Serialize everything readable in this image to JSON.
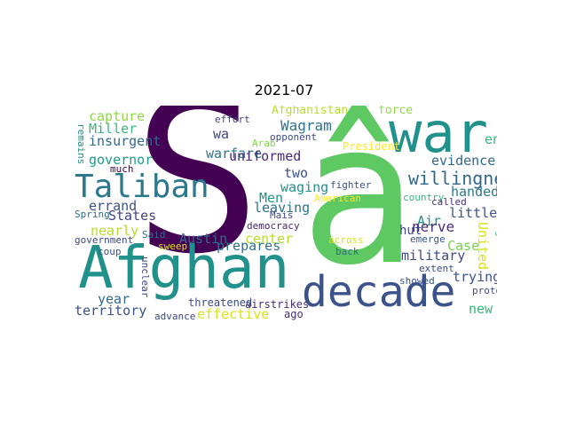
{
  "title": "2021-07",
  "words": [
    {
      "text": "S",
      "color": "#440154",
      "vertical": false
    },
    {
      "text": "â",
      "color": "#5ec962",
      "vertical": false
    },
    {
      "text": "war",
      "color": "#21918c",
      "vertical": false
    },
    {
      "text": "Afghan",
      "color": "#21918c",
      "vertical": false
    },
    {
      "text": "decade",
      "color": "#3b528b",
      "vertical": false
    },
    {
      "text": "Taliban",
      "color": "#2a788e",
      "vertical": false
    },
    {
      "text": "willingness",
      "color": "#31688e",
      "vertical": false
    },
    {
      "text": "capture",
      "color": "#90d743",
      "vertical": false
    },
    {
      "text": "Miller",
      "color": "#35b779",
      "vertical": false
    },
    {
      "text": "insurgent",
      "color": "#31688e",
      "vertical": false
    },
    {
      "text": "governor",
      "color": "#1f9e89",
      "vertical": false
    },
    {
      "text": "errand",
      "color": "#3b528b",
      "vertical": false
    },
    {
      "text": "States",
      "color": "#414487",
      "vertical": false
    },
    {
      "text": "nearly",
      "color": "#b5de2b",
      "vertical": false
    },
    {
      "text": "year",
      "color": "#31688e",
      "vertical": false
    },
    {
      "text": "territory",
      "color": "#3b528b",
      "vertical": false
    },
    {
      "text": "wa",
      "color": "#414487",
      "vertical": false
    },
    {
      "text": "warfare",
      "color": "#2c728e",
      "vertical": false
    },
    {
      "text": "uniformed",
      "color": "#482878",
      "vertical": false
    },
    {
      "text": "Wagram",
      "color": "#2c728e",
      "vertical": false
    },
    {
      "text": "Afghanistan",
      "color": "#b5de2b",
      "vertical": false
    },
    {
      "text": "force",
      "color": "#90d743",
      "vertical": false
    },
    {
      "text": "effort",
      "color": "#414487",
      "vertical": false
    },
    {
      "text": "opponent",
      "color": "#3e4989",
      "vertical": false
    },
    {
      "text": "President",
      "color": "#fde725",
      "vertical": false
    },
    {
      "text": "end",
      "color": "#35b779",
      "vertical": false
    },
    {
      "text": "evidence",
      "color": "#31688e",
      "vertical": false
    },
    {
      "text": "two",
      "color": "#3b528b",
      "vertical": false
    },
    {
      "text": "waging",
      "color": "#21918c",
      "vertical": false
    },
    {
      "text": "Men",
      "color": "#21918c",
      "vertical": false
    },
    {
      "text": "leaving",
      "color": "#2c728e",
      "vertical": false
    },
    {
      "text": "handed",
      "color": "#2a788e",
      "vertical": false
    },
    {
      "text": "Air",
      "color": "#21918c",
      "vertical": false
    },
    {
      "text": "nerve",
      "color": "#472d7b",
      "vertical": false
    },
    {
      "text": "little",
      "color": "#3b528b",
      "vertical": false
    },
    {
      "text": "hut",
      "color": "#3e4989",
      "vertical": false
    },
    {
      "text": "military",
      "color": "#3e4989",
      "vertical": false
    },
    {
      "text": "Case",
      "color": "#7ad151",
      "vertical": false
    },
    {
      "text": "trying",
      "color": "#3b528b",
      "vertical": false
    },
    {
      "text": "new",
      "color": "#35b779",
      "vertical": false
    },
    {
      "text": "Austin",
      "color": "#31688e",
      "vertical": false
    },
    {
      "text": "prepares",
      "color": "#2c728e",
      "vertical": false
    },
    {
      "text": "center",
      "color": "#b5de2b",
      "vertical": false
    },
    {
      "text": "effective",
      "color": "#d8e219",
      "vertical": false
    },
    {
      "text": "threatened",
      "color": "#3e4989",
      "vertical": false
    },
    {
      "text": "airstrikes",
      "color": "#472d7b",
      "vertical": false
    },
    {
      "text": "ago",
      "color": "#472d7b",
      "vertical": false
    },
    {
      "text": "democracy",
      "color": "#482878",
      "vertical": false
    },
    {
      "text": "Mais",
      "color": "#3e4989",
      "vertical": false
    },
    {
      "text": "Arab",
      "color": "#86d549",
      "vertical": false
    },
    {
      "text": "fighter",
      "color": "#3b528b",
      "vertical": false
    },
    {
      "text": "American",
      "color": "#fde725",
      "vertical": false
    },
    {
      "text": "country",
      "color": "#35b779",
      "vertical": false
    },
    {
      "text": "called",
      "color": "#472d7b",
      "vertical": false
    },
    {
      "text": "emerge",
      "color": "#3b528b",
      "vertical": false
    },
    {
      "text": "extent",
      "color": "#3e4989",
      "vertical": false
    },
    {
      "text": "across",
      "color": "#d8e219",
      "vertical": false
    },
    {
      "text": "back",
      "color": "#31688e",
      "vertical": false
    },
    {
      "text": "showed",
      "color": "#3b528b",
      "vertical": false
    },
    {
      "text": "protest",
      "color": "#3e4989",
      "vertical": false
    },
    {
      "text": "much",
      "color": "#440154",
      "vertical": false
    },
    {
      "text": "Spring",
      "color": "#2c728e",
      "vertical": false
    },
    {
      "text": "Said",
      "color": "#2c728e",
      "vertical": false
    },
    {
      "text": "sweep",
      "color": "#d8e219",
      "vertical": false
    },
    {
      "text": "government",
      "color": "#3e4989",
      "vertical": false
    },
    {
      "text": "coup",
      "color": "#3b528b",
      "vertical": false
    },
    {
      "text": "advance",
      "color": "#3e4989",
      "vertical": false
    },
    {
      "text": "remains",
      "color": "#21918c",
      "vertical": true
    },
    {
      "text": "unclear",
      "color": "#3e4989",
      "vertical": true
    },
    {
      "text": "United",
      "color": "#d8e219",
      "vertical": true
    },
    {
      "text": "beleaguered",
      "color": "#35b779",
      "vertical": true
    }
  ]
}
